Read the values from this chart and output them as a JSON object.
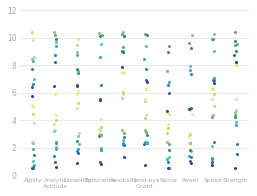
{
  "categories": [
    "Agility",
    "Analytic\nAptitude",
    "Durability",
    "Endurance",
    "Flexibility",
    "Hand-eye\nCoord.",
    "Nerve",
    "Power",
    "Speed",
    "Strength"
  ],
  "ylim": [
    0,
    12
  ],
  "yticks": [
    0,
    2,
    4,
    6,
    8,
    10,
    12
  ],
  "palette": [
    "#1a3a6e",
    "#2255a0",
    "#1a78a0",
    "#29a0b8",
    "#4db8b8",
    "#3d7a4f",
    "#5a9e6f",
    "#7dbe8a",
    "#a8d89b",
    "#c8e6a0",
    "#c8dc40",
    "#d4edaa",
    "#e0f060"
  ],
  "n_points_range": [
    18,
    25
  ],
  "background": "#ffffff"
}
